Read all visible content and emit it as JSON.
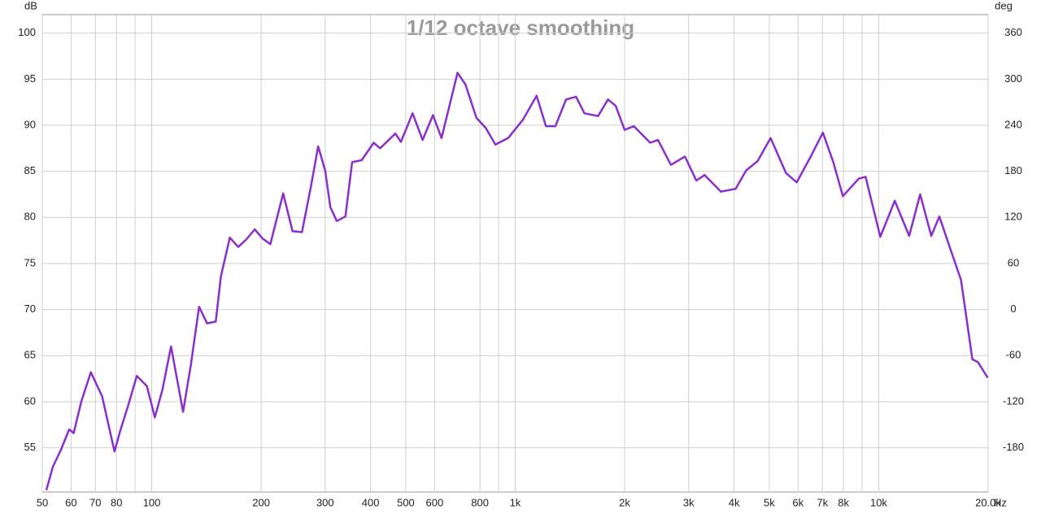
{
  "chart_data": {
    "type": "line",
    "title": "1/12 octave smoothing",
    "x_label": "Hz",
    "y_label": "dB",
    "y2_label": "deg",
    "log_x": true,
    "grid": true,
    "xlim": [
      50,
      20000
    ],
    "ylim": [
      50.2,
      102
    ],
    "y2lim": [
      -237.6,
      384
    ],
    "xticks": [
      50,
      60,
      70,
      80,
      100,
      200,
      300,
      400,
      500,
      600,
      800,
      {
        "value": 1000,
        "label": "1k"
      },
      {
        "value": 2000,
        "label": "2k"
      },
      {
        "value": 3000,
        "label": "3k"
      },
      {
        "value": 4000,
        "label": "4k"
      },
      {
        "value": 5000,
        "label": "5k"
      },
      {
        "value": 6000,
        "label": "6k"
      },
      {
        "value": 7000,
        "label": "7k"
      },
      {
        "value": 8000,
        "label": "8k"
      },
      {
        "value": 10000,
        "label": "10k"
      },
      {
        "value": 20000,
        "label": "20.0k"
      }
    ],
    "xminor": [
      90,
      900,
      9000
    ],
    "yticks": [
      55,
      60,
      65,
      70,
      75,
      80,
      85,
      90,
      95,
      100
    ],
    "y2ticks": [
      -180,
      -120,
      -60,
      0,
      60,
      120,
      180,
      240,
      300,
      360
    ],
    "x": [
      51.3,
      53.4,
      56.3,
      59.3,
      61,
      64,
      68,
      73,
      79,
      82,
      86,
      91,
      97,
      102,
      107,
      113,
      122,
      128,
      135,
      142,
      150,
      155,
      164,
      173,
      182,
      192,
      202,
      212,
      230,
      244,
      259,
      274,
      287,
      300,
      310,
      323,
      341,
      356,
      378,
      408,
      425,
      468,
      485,
      522,
      556,
      594,
      627,
      694,
      730,
      782,
      830,
      882,
      956,
      1050,
      1145,
      1215,
      1290,
      1380,
      1470,
      1550,
      1690,
      1800,
      1890,
      2000,
      2120,
      2350,
      2470,
      2680,
      2930,
      3150,
      3320,
      3680,
      4040,
      4320,
      4640,
      5040,
      5560,
      5950,
      6520,
      7020,
      7500,
      7970,
      8810,
      9200,
      10100,
      11070,
      12130,
      13000,
      13950,
      14680,
      15830,
      16850,
      18100,
      18740,
      19950
    ],
    "series": [
      {
        "name": "dB",
        "color": "#8a2fcc",
        "values": [
          50.4,
          52.9,
          54.8,
          57,
          56.6,
          60,
          63.2,
          60.6,
          54.6,
          56.9,
          59.5,
          62.8,
          61.7,
          58.3,
          61.3,
          66,
          58.9,
          63.9,
          70.3,
          68.5,
          68.7,
          73.6,
          77.8,
          76.8,
          77.6,
          78.7,
          77.7,
          77.1,
          82.6,
          78.5,
          78.4,
          83.3,
          87.7,
          85.1,
          81.1,
          79.6,
          80.1,
          86,
          86.2,
          88.1,
          87.5,
          89.1,
          88.2,
          91.3,
          88.4,
          91.1,
          88.6,
          95.7,
          94.4,
          90.8,
          89.7,
          87.9,
          88.6,
          90.6,
          93.2,
          89.9,
          89.9,
          92.8,
          93.1,
          91.3,
          91,
          92.8,
          92.1,
          89.5,
          89.9,
          88.1,
          88.4,
          85.7,
          86.6,
          84,
          84.6,
          82.8,
          83.1,
          85.1,
          86.1,
          88.6,
          84.8,
          83.8,
          86.7,
          89.2,
          86,
          82.3,
          84.2,
          84.4,
          77.9,
          81.8,
          78,
          82.5,
          78,
          80.1,
          76.3,
          73.2,
          64.6,
          64.3,
          62.6
        ]
      }
    ]
  }
}
